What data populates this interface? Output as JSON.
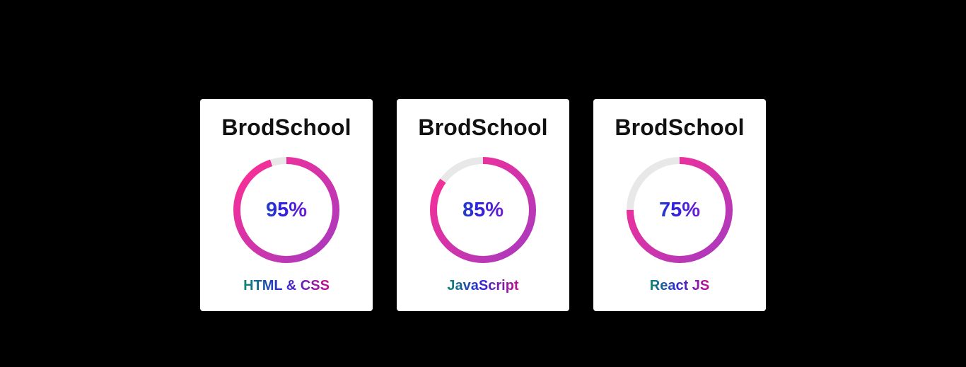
{
  "cards": [
    {
      "title": "BrodSchool",
      "percent_label": "95%",
      "progress": 0.95,
      "skill": "HTML & CSS"
    },
    {
      "title": "BrodSchool",
      "percent_label": "85%",
      "progress": 0.85,
      "skill": "JavaScript"
    },
    {
      "title": "BrodSchool",
      "percent_label": "75%",
      "progress": 0.75,
      "skill": "React JS"
    }
  ],
  "colors": {
    "background": "#000000",
    "card": "#ffffff",
    "track": "#e8e8e8",
    "ring_start": "#ff2e93",
    "ring_end": "#a63ac0"
  }
}
